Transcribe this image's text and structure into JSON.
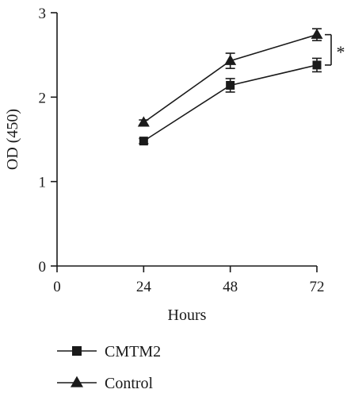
{
  "chart_data": {
    "type": "line",
    "xlabel": "Hours",
    "ylabel": "OD (450)",
    "xlim": [
      0,
      72
    ],
    "ylim": [
      0,
      3
    ],
    "x_ticks": [
      0,
      24,
      48,
      72
    ],
    "y_ticks": [
      0,
      1,
      2,
      3
    ],
    "x": [
      24,
      48,
      72
    ],
    "series": [
      {
        "name": "CMTM2",
        "marker": "square",
        "values": [
          1.48,
          2.14,
          2.38
        ],
        "errors": [
          0.03,
          0.08,
          0.08
        ]
      },
      {
        "name": "Control",
        "marker": "triangle",
        "values": [
          1.7,
          2.43,
          2.74
        ],
        "errors": [
          0.03,
          0.09,
          0.07
        ]
      }
    ],
    "legend_position": "bottom-left",
    "annotations": [
      {
        "text": "*",
        "between": [
          "Control",
          "CMTM2"
        ],
        "at_x": 72
      }
    ]
  }
}
